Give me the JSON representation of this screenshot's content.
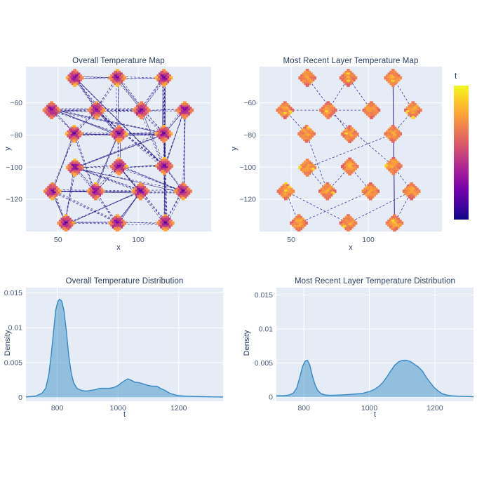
{
  "palette": {
    "page_bg": "#ffffff",
    "plot_bg": "#e5ecf6",
    "grid": "#ffffff",
    "title_color": "#2a3f5f",
    "tick_color": "#4a5b78",
    "edge_color": "#2a1a8c",
    "density_fill": "#4292c6",
    "density_fill_opacity": 0.5,
    "density_line": "#3688c5",
    "plasma": [
      "#0d0887",
      "#46039f",
      "#7201a8",
      "#9c179e",
      "#bd3786",
      "#d8576b",
      "#ed7953",
      "#fb9f3a",
      "#fdca26",
      "#f0f921"
    ]
  },
  "colorbar": {
    "label": "t"
  },
  "chart_data": [
    {
      "type": "scatter",
      "id": "overall_map",
      "title": "Overall Temperature Map",
      "xlabel": "x",
      "ylabel": "y",
      "xticks": [
        50,
        100
      ],
      "yticks": [
        -60,
        -80,
        -100,
        -120
      ],
      "xlim": [
        30,
        145.5
      ],
      "ylim": [
        -140,
        -37.5
      ],
      "node_style": "overall",
      "nodes": [
        [
          60.5,
          -44.5
        ],
        [
          87,
          -44.5
        ],
        [
          116,
          -44.5
        ],
        [
          46,
          -64.6
        ],
        [
          74,
          -64.6
        ],
        [
          102,
          -64.6
        ],
        [
          129,
          -64.6
        ],
        [
          60,
          -79.3
        ],
        [
          88,
          -79.5
        ],
        [
          116,
          -79.3
        ],
        [
          60.5,
          -100.3
        ],
        [
          88,
          -99.6
        ],
        [
          116.3,
          -99.3
        ],
        [
          46.5,
          -115
        ],
        [
          73.5,
          -115
        ],
        [
          101.5,
          -115
        ],
        [
          128,
          -115
        ],
        [
          55,
          -134.8
        ],
        [
          87,
          -134.8
        ],
        [
          117,
          -134.8
        ]
      ],
      "edges": [
        [
          0,
          1
        ],
        [
          0,
          4
        ],
        [
          0,
          8
        ],
        [
          0,
          12
        ],
        [
          1,
          2
        ],
        [
          1,
          4
        ],
        [
          1,
          5
        ],
        [
          1,
          8
        ],
        [
          2,
          5
        ],
        [
          2,
          9
        ],
        [
          2,
          12
        ],
        [
          2,
          19
        ],
        [
          3,
          4
        ],
        [
          3,
          5
        ],
        [
          3,
          7
        ],
        [
          3,
          9
        ],
        [
          4,
          5
        ],
        [
          4,
          7
        ],
        [
          4,
          8
        ],
        [
          4,
          12
        ],
        [
          5,
          6
        ],
        [
          5,
          9
        ],
        [
          5,
          12
        ],
        [
          6,
          9
        ],
        [
          6,
          12
        ],
        [
          6,
          16
        ],
        [
          7,
          8
        ],
        [
          7,
          9
        ],
        [
          7,
          13
        ],
        [
          7,
          14
        ],
        [
          8,
          9
        ],
        [
          8,
          11
        ],
        [
          8,
          14
        ],
        [
          9,
          10
        ],
        [
          9,
          12
        ],
        [
          10,
          11
        ],
        [
          10,
          14
        ],
        [
          10,
          15
        ],
        [
          10,
          16
        ],
        [
          10,
          17
        ],
        [
          11,
          12
        ],
        [
          11,
          14
        ],
        [
          11,
          15
        ],
        [
          12,
          16
        ],
        [
          12,
          19
        ],
        [
          13,
          14
        ],
        [
          13,
          15
        ],
        [
          13,
          17
        ],
        [
          13,
          18
        ],
        [
          14,
          15
        ],
        [
          14,
          18
        ],
        [
          15,
          16
        ],
        [
          15,
          18
        ],
        [
          15,
          19
        ],
        [
          16,
          19
        ],
        [
          17,
          18
        ],
        [
          17,
          15
        ],
        [
          18,
          19
        ],
        [
          3,
          8
        ],
        [
          11,
          16
        ]
      ],
      "edge_style": "dense"
    },
    {
      "type": "scatter",
      "id": "recent_map",
      "title": "Most Recent Layer Temperature Map",
      "xlabel": "x",
      "ylabel": "y",
      "xticks": [
        50,
        100
      ],
      "yticks": [
        -60,
        -80,
        -100,
        -120
      ],
      "xlim": [
        29.5,
        147.7
      ],
      "ylim": [
        -140,
        -37.5
      ],
      "node_style": "recent",
      "nodes": [
        [
          60.5,
          -44.5
        ],
        [
          87,
          -44.5
        ],
        [
          116,
          -44.5
        ],
        [
          46,
          -64.6
        ],
        [
          74,
          -64.6
        ],
        [
          102,
          -64.6
        ],
        [
          129,
          -64.6
        ],
        [
          60,
          -79.3
        ],
        [
          88,
          -79.5
        ],
        [
          116,
          -79.3
        ],
        [
          60.5,
          -100.3
        ],
        [
          88,
          -99.6
        ],
        [
          116.3,
          -99.3
        ],
        [
          46.5,
          -115
        ],
        [
          73.5,
          -115
        ],
        [
          101.5,
          -115
        ],
        [
          128,
          -115
        ],
        [
          55,
          -134.8
        ],
        [
          87,
          -134.8
        ],
        [
          117,
          -134.8
        ]
      ],
      "edges": [
        [
          0,
          8
        ],
        [
          1,
          4
        ],
        [
          4,
          12
        ],
        [
          3,
          5
        ],
        [
          3,
          7
        ],
        [
          7,
          14
        ],
        [
          14,
          11
        ],
        [
          11,
          15
        ],
        [
          10,
          9
        ],
        [
          9,
          6
        ],
        [
          6,
          2
        ],
        [
          13,
          17
        ],
        [
          13,
          18
        ],
        [
          17,
          15
        ],
        [
          18,
          16
        ],
        [
          16,
          19
        ],
        [
          12,
          16
        ],
        [
          5,
          1
        ],
        [
          10,
          14
        ],
        [
          2,
          19
        ]
      ],
      "solid_edge_indices": [
        19
      ],
      "edge_style": "path"
    },
    {
      "type": "area",
      "id": "overall_dist",
      "title": "Overall Temperature Distribution",
      "xlabel": "t",
      "ylabel": "Density",
      "xticks": [
        800,
        1000,
        1200
      ],
      "yticks": [
        0,
        0.005,
        0.01,
        0.015
      ],
      "xlim": [
        697,
        1346
      ],
      "ylim": [
        0,
        0.0163
      ],
      "x": [
        697,
        730,
        750,
        762,
        772,
        780,
        788,
        795,
        802,
        808,
        815,
        822,
        830,
        838,
        846,
        854,
        865,
        880,
        895,
        910,
        925,
        940,
        955,
        970,
        985,
        1000,
        1012,
        1022,
        1032,
        1042,
        1055,
        1070,
        1085,
        1100,
        1115,
        1128,
        1140,
        1155,
        1170,
        1185,
        1200,
        1220,
        1250,
        1280,
        1310,
        1346
      ],
      "y": [
        5e-05,
        0.0002,
        0.0006,
        0.0013,
        0.0032,
        0.006,
        0.0095,
        0.0125,
        0.0138,
        0.0141,
        0.0138,
        0.0125,
        0.0095,
        0.006,
        0.0035,
        0.0021,
        0.0013,
        0.001,
        0.0009,
        0.001,
        0.0011,
        0.0013,
        0.0013,
        0.0013,
        0.0014,
        0.0017,
        0.0021,
        0.0024,
        0.00265,
        0.0025,
        0.0022,
        0.0021,
        0.0019,
        0.0017,
        0.0016,
        0.0016,
        0.0013,
        0.001,
        0.0006,
        0.0004,
        0.00025,
        0.00018,
        0.00013,
        0.0001,
        7e-05,
        5e-05
      ]
    },
    {
      "type": "area",
      "id": "recent_dist",
      "title": "Most Recent Layer Temperature Distribution",
      "xlabel": "t",
      "ylabel": "Density",
      "xticks": [
        800,
        1000,
        1200
      ],
      "yticks": [
        0,
        0.005,
        0.01,
        0.015
      ],
      "xlim": [
        716,
        1318
      ],
      "ylim": [
        0,
        0.0163
      ],
      "x": [
        716,
        740,
        755,
        768,
        778,
        788,
        796,
        804,
        811,
        818,
        826,
        834,
        842,
        852,
        865,
        880,
        900,
        920,
        940,
        960,
        980,
        1000,
        1015,
        1030,
        1042,
        1054,
        1066,
        1078,
        1090,
        1102,
        1114,
        1126,
        1138,
        1150,
        1162,
        1174,
        1186,
        1198,
        1210,
        1222,
        1235,
        1250,
        1270,
        1295,
        1318
      ],
      "y": [
        0.0002,
        0.0002,
        0.0003,
        0.0006,
        0.0013,
        0.003,
        0.0045,
        0.0053,
        0.0054,
        0.0047,
        0.0031,
        0.0018,
        0.001,
        0.0005,
        0.0003,
        0.00025,
        0.00028,
        0.00032,
        0.00038,
        0.00045,
        0.00055,
        0.0008,
        0.0011,
        0.0016,
        0.0022,
        0.003,
        0.0039,
        0.0047,
        0.0052,
        0.0054,
        0.0054,
        0.0052,
        0.0048,
        0.0044,
        0.0038,
        0.0029,
        0.0021,
        0.0014,
        0.0009,
        0.0005,
        0.0003,
        0.0002,
        0.00012,
        8e-05,
        5e-05
      ]
    }
  ]
}
